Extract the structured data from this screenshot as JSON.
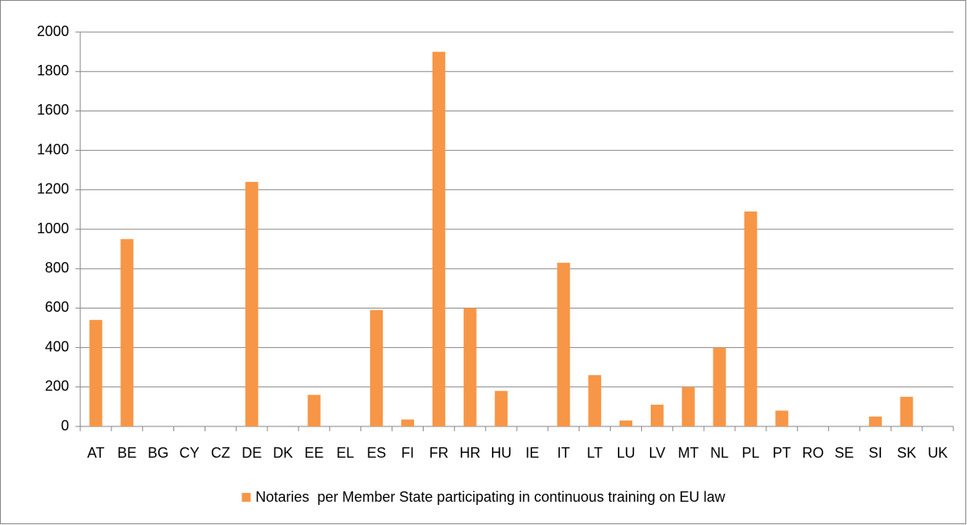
{
  "chart_data": {
    "type": "bar",
    "categories": [
      "AT",
      "BE",
      "BG",
      "CY",
      "CZ",
      "DE",
      "DK",
      "EE",
      "EL",
      "ES",
      "FI",
      "FR",
      "HR",
      "HU",
      "IE",
      "IT",
      "LT",
      "LU",
      "LV",
      "MT",
      "NL",
      "PL",
      "PT",
      "RO",
      "SE",
      "SI",
      "SK",
      "UK"
    ],
    "series": [
      {
        "name": "Notaries  per Member State participating in continuous training on EU law",
        "color": "#f79646",
        "values": [
          540,
          950,
          0,
          0,
          0,
          1240,
          0,
          160,
          0,
          590,
          35,
          1900,
          600,
          180,
          0,
          830,
          260,
          30,
          110,
          200,
          400,
          1090,
          80,
          0,
          0,
          50,
          150,
          0
        ]
      }
    ],
    "ylim": [
      0,
      2000
    ],
    "yticks": [
      0,
      200,
      400,
      600,
      800,
      1000,
      1200,
      1400,
      1600,
      1800,
      2000
    ],
    "grid": true,
    "legend": "bottom"
  }
}
